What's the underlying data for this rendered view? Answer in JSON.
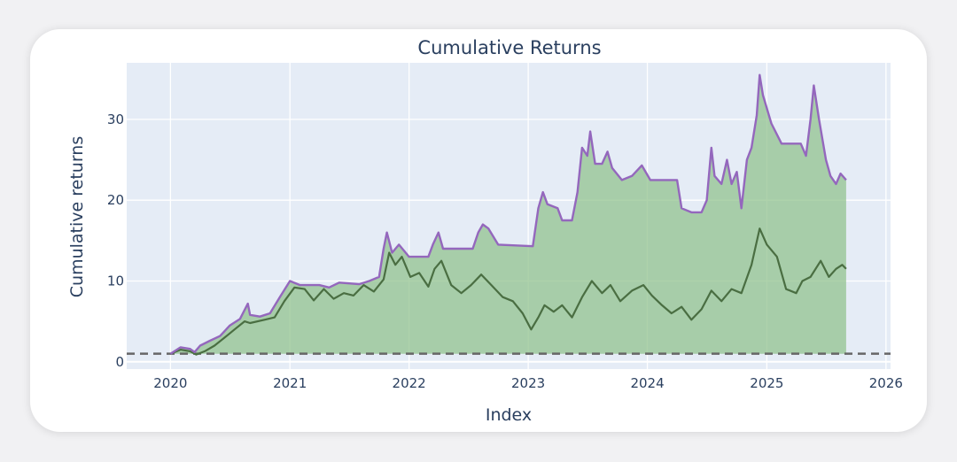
{
  "chart_data": {
    "type": "area",
    "title": "Cumulative Returns",
    "xlabel": "Index",
    "ylabel": "Cumulative returns",
    "x_ticks": [
      "2020",
      "2021",
      "2022",
      "2023",
      "2024",
      "2025",
      "2026"
    ],
    "y_ticks": [
      "0",
      "10",
      "20",
      "30"
    ],
    "xlim": [
      "2019-08-20",
      "2026-01-15"
    ],
    "ylim": [
      -0.9,
      37
    ],
    "grid": true,
    "baseline": 1,
    "colors": {
      "plot_bg": "#e5ecf6",
      "upper_line": "#9467bd",
      "lower_line": "#4a6e42",
      "fill": "#8fc18a",
      "baseline": "#666666"
    },
    "series": [
      {
        "role": "upper",
        "points": [
          [
            "2020-01-01",
            1.0
          ],
          [
            "2020-02-01",
            1.8
          ],
          [
            "2020-03-01",
            1.6
          ],
          [
            "2020-03-15",
            1.2
          ],
          [
            "2020-04-01",
            2.0
          ],
          [
            "2020-05-01",
            2.6
          ],
          [
            "2020-06-01",
            3.2
          ],
          [
            "2020-07-01",
            4.5
          ],
          [
            "2020-08-01",
            5.3
          ],
          [
            "2020-08-25",
            7.2
          ],
          [
            "2020-09-01",
            5.8
          ],
          [
            "2020-10-01",
            5.6
          ],
          [
            "2020-11-01",
            6.0
          ],
          [
            "2020-12-01",
            8.0
          ],
          [
            "2021-01-01",
            10.0
          ],
          [
            "2021-02-01",
            9.5
          ],
          [
            "2021-04-01",
            9.5
          ],
          [
            "2021-05-01",
            9.2
          ],
          [
            "2021-06-01",
            9.8
          ],
          [
            "2021-08-01",
            9.6
          ],
          [
            "2021-09-01",
            10.0
          ],
          [
            "2021-10-01",
            10.5
          ],
          [
            "2021-10-15",
            14.0
          ],
          [
            "2021-10-25",
            16.0
          ],
          [
            "2021-11-10",
            13.5
          ],
          [
            "2021-12-01",
            14.5
          ],
          [
            "2022-01-01",
            13.0
          ],
          [
            "2022-03-01",
            13.0
          ],
          [
            "2022-03-15",
            14.5
          ],
          [
            "2022-04-01",
            16.0
          ],
          [
            "2022-04-15",
            14.0
          ],
          [
            "2022-07-15",
            14.0
          ],
          [
            "2022-08-01",
            16.0
          ],
          [
            "2022-08-15",
            17.0
          ],
          [
            "2022-09-01",
            16.5
          ],
          [
            "2022-10-01",
            14.5
          ],
          [
            "2023-01-15",
            14.3
          ],
          [
            "2023-02-01",
            19.0
          ],
          [
            "2023-02-15",
            21.0
          ],
          [
            "2023-03-01",
            19.5
          ],
          [
            "2023-04-01",
            19.0
          ],
          [
            "2023-04-15",
            17.5
          ],
          [
            "2023-05-15",
            17.5
          ],
          [
            "2023-06-01",
            21.0
          ],
          [
            "2023-06-15",
            26.5
          ],
          [
            "2023-07-01",
            25.5
          ],
          [
            "2023-07-10",
            28.5
          ],
          [
            "2023-07-25",
            24.5
          ],
          [
            "2023-08-15",
            24.5
          ],
          [
            "2023-09-01",
            26.0
          ],
          [
            "2023-09-15",
            24.0
          ],
          [
            "2023-10-15",
            22.5
          ],
          [
            "2023-11-15",
            23.0
          ],
          [
            "2023-12-15",
            24.3
          ],
          [
            "2024-01-10",
            22.5
          ],
          [
            "2024-04-01",
            22.5
          ],
          [
            "2024-04-15",
            19.0
          ],
          [
            "2024-05-15",
            18.5
          ],
          [
            "2024-06-15",
            18.5
          ],
          [
            "2024-07-01",
            20.0
          ],
          [
            "2024-07-15",
            26.5
          ],
          [
            "2024-07-25",
            23.0
          ],
          [
            "2024-08-15",
            22.0
          ],
          [
            "2024-09-01",
            25.0
          ],
          [
            "2024-09-15",
            22.0
          ],
          [
            "2024-10-01",
            23.5
          ],
          [
            "2024-10-15",
            19.0
          ],
          [
            "2024-11-01",
            25.0
          ],
          [
            "2024-11-15",
            26.5
          ],
          [
            "2024-12-01",
            30.5
          ],
          [
            "2024-12-10",
            35.5
          ],
          [
            "2024-12-20",
            33.0
          ],
          [
            "2025-01-15",
            29.5
          ],
          [
            "2025-02-15",
            27.0
          ],
          [
            "2025-03-15",
            27.0
          ],
          [
            "2025-04-15",
            27.0
          ],
          [
            "2025-05-01",
            25.5
          ],
          [
            "2025-05-15",
            30.0
          ],
          [
            "2025-05-25",
            34.2
          ],
          [
            "2025-06-10",
            30.0
          ],
          [
            "2025-07-01",
            25.0
          ],
          [
            "2025-07-15",
            23.0
          ],
          [
            "2025-08-01",
            22.0
          ],
          [
            "2025-08-15",
            23.3
          ],
          [
            "2025-09-01",
            22.5
          ]
        ]
      },
      {
        "role": "lower",
        "points": [
          [
            "2020-01-01",
            1.0
          ],
          [
            "2020-02-01",
            1.5
          ],
          [
            "2020-03-01",
            1.3
          ],
          [
            "2020-03-20",
            0.9
          ],
          [
            "2020-04-15",
            1.3
          ],
          [
            "2020-05-15",
            2.0
          ],
          [
            "2020-06-15",
            3.0
          ],
          [
            "2020-07-15",
            4.0
          ],
          [
            "2020-08-15",
            5.0
          ],
          [
            "2020-09-01",
            4.8
          ],
          [
            "2020-10-15",
            5.2
          ],
          [
            "2020-11-15",
            5.5
          ],
          [
            "2020-12-15",
            7.5
          ],
          [
            "2021-01-15",
            9.2
          ],
          [
            "2021-02-15",
            9.0
          ],
          [
            "2021-03-15",
            7.6
          ],
          [
            "2021-04-15",
            9.0
          ],
          [
            "2021-05-15",
            7.8
          ],
          [
            "2021-06-15",
            8.5
          ],
          [
            "2021-07-15",
            8.2
          ],
          [
            "2021-08-15",
            9.5
          ],
          [
            "2021-09-15",
            8.7
          ],
          [
            "2021-10-15",
            10.2
          ],
          [
            "2021-11-01",
            13.5
          ],
          [
            "2021-11-20",
            12.0
          ],
          [
            "2021-12-10",
            13.0
          ],
          [
            "2022-01-05",
            10.5
          ],
          [
            "2022-02-01",
            11.0
          ],
          [
            "2022-03-01",
            9.3
          ],
          [
            "2022-03-20",
            11.5
          ],
          [
            "2022-04-10",
            12.5
          ],
          [
            "2022-05-10",
            9.5
          ],
          [
            "2022-06-10",
            8.5
          ],
          [
            "2022-07-10",
            9.5
          ],
          [
            "2022-08-10",
            10.8
          ],
          [
            "2022-09-10",
            9.5
          ],
          [
            "2022-10-15",
            8.0
          ],
          [
            "2022-11-15",
            7.5
          ],
          [
            "2022-12-15",
            6.0
          ],
          [
            "2023-01-10",
            4.0
          ],
          [
            "2023-02-01",
            5.5
          ],
          [
            "2023-02-20",
            7.0
          ],
          [
            "2023-03-20",
            6.2
          ],
          [
            "2023-04-15",
            7.0
          ],
          [
            "2023-05-15",
            5.5
          ],
          [
            "2023-06-15",
            8.0
          ],
          [
            "2023-07-15",
            10.0
          ],
          [
            "2023-08-15",
            8.5
          ],
          [
            "2023-09-10",
            9.5
          ],
          [
            "2023-10-10",
            7.5
          ],
          [
            "2023-11-15",
            8.8
          ],
          [
            "2023-12-20",
            9.5
          ],
          [
            "2024-01-15",
            8.2
          ],
          [
            "2024-02-15",
            7.0
          ],
          [
            "2024-03-15",
            6.0
          ],
          [
            "2024-04-15",
            6.8
          ],
          [
            "2024-05-15",
            5.2
          ],
          [
            "2024-06-15",
            6.5
          ],
          [
            "2024-07-15",
            8.8
          ],
          [
            "2024-08-15",
            7.5
          ],
          [
            "2024-09-15",
            9.0
          ],
          [
            "2024-10-15",
            8.5
          ],
          [
            "2024-11-15",
            12.0
          ],
          [
            "2024-12-10",
            16.5
          ],
          [
            "2025-01-01",
            14.5
          ],
          [
            "2025-02-01",
            13.0
          ],
          [
            "2025-03-01",
            9.0
          ],
          [
            "2025-04-01",
            8.5
          ],
          [
            "2025-04-20",
            10.0
          ],
          [
            "2025-05-15",
            10.5
          ],
          [
            "2025-06-15",
            12.5
          ],
          [
            "2025-07-10",
            10.5
          ],
          [
            "2025-08-01",
            11.5
          ],
          [
            "2025-08-20",
            12.0
          ],
          [
            "2025-09-01",
            11.5
          ]
        ]
      }
    ]
  }
}
